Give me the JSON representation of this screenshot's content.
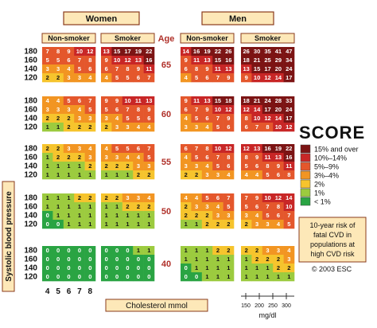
{
  "chart_data": {
    "type": "heatmap",
    "title": "SCORE",
    "sexes": [
      "Women",
      "Men"
    ],
    "smoking": [
      "Non-smoker",
      "Smoker"
    ],
    "age_header": "Age",
    "ages": [
      65,
      60,
      55,
      50,
      40
    ],
    "sbp_rows": [
      180,
      160,
      140,
      120
    ],
    "chol_cols": [
      4,
      5,
      6,
      7,
      8
    ],
    "xlabel": "Cholesterol mmol",
    "ylabel": "Systolic blood pressure",
    "mgdl_ticks": [
      "150",
      "200",
      "250",
      "300"
    ],
    "mgdl_unit": "mg/dl",
    "risk": {
      "Women": {
        "Non-smoker": [
          [
            [
              7,
              8,
              9,
              10,
              12
            ],
            [
              5,
              5,
              6,
              7,
              8
            ],
            [
              3,
              3,
              4,
              5,
              6
            ],
            [
              2,
              2,
              3,
              3,
              4
            ]
          ],
          [
            [
              4,
              4,
              5,
              6,
              7
            ],
            [
              3,
              3,
              3,
              4,
              5
            ],
            [
              2,
              2,
              2,
              3,
              3
            ],
            [
              1,
              1,
              2,
              2,
              2
            ]
          ],
          [
            [
              2,
              2,
              3,
              3,
              4
            ],
            [
              1,
              2,
              2,
              2,
              3
            ],
            [
              1,
              1,
              1,
              1,
              2
            ],
            [
              1,
              1,
              1,
              1,
              1
            ]
          ],
          [
            [
              1,
              1,
              1,
              2,
              2
            ],
            [
              1,
              1,
              1,
              1,
              1
            ],
            [
              0,
              1,
              1,
              1,
              1
            ],
            [
              0,
              0,
              1,
              1,
              1
            ]
          ],
          [
            [
              0,
              0,
              0,
              0,
              0
            ],
            [
              0,
              0,
              0,
              0,
              0
            ],
            [
              0,
              0,
              0,
              0,
              0
            ],
            [
              0,
              0,
              0,
              0,
              0
            ]
          ]
        ],
        "Smoker": [
          [
            [
              13,
              15,
              17,
              19,
              22
            ],
            [
              9,
              10,
              12,
              13,
              16
            ],
            [
              6,
              7,
              8,
              9,
              11
            ],
            [
              4,
              5,
              5,
              6,
              7
            ]
          ],
          [
            [
              9,
              9,
              10,
              11,
              13
            ],
            [
              5,
              6,
              7,
              8,
              9
            ],
            [
              3,
              4,
              5,
              5,
              6
            ],
            [
              2,
              3,
              3,
              4,
              4
            ]
          ],
          [
            [
              4,
              5,
              5,
              6,
              7
            ],
            [
              3,
              3,
              4,
              4,
              5
            ],
            [
              2,
              2,
              2,
              3,
              3
            ],
            [
              1,
              1,
              1,
              2,
              2
            ]
          ],
          [
            [
              2,
              2,
              3,
              3,
              4
            ],
            [
              1,
              1,
              2,
              2,
              2
            ],
            [
              1,
              1,
              1,
              1,
              1
            ],
            [
              1,
              1,
              1,
              1,
              1
            ]
          ],
          [
            [
              0,
              0,
              0,
              1,
              1
            ],
            [
              0,
              0,
              0,
              0,
              0
            ],
            [
              0,
              0,
              0,
              0,
              0
            ],
            [
              0,
              0,
              0,
              0,
              0
            ]
          ]
        ]
      },
      "Men": {
        "Non-smoker": [
          [
            [
              14,
              16,
              19,
              22,
              26
            ],
            [
              9,
              11,
              13,
              15,
              16
            ],
            [
              6,
              8,
              9,
              11,
              13
            ],
            [
              4,
              5,
              6,
              7,
              9
            ]
          ],
          [
            [
              9,
              11,
              13,
              15,
              18
            ],
            [
              6,
              7,
              9,
              10,
              12
            ],
            [
              4,
              5,
              6,
              7,
              9
            ],
            [
              3,
              3,
              4,
              5,
              6
            ]
          ],
          [
            [
              6,
              7,
              8,
              10,
              12
            ],
            [
              4,
              5,
              6,
              7,
              8
            ],
            [
              3,
              3,
              4,
              5,
              6
            ],
            [
              2,
              2,
              3,
              3,
              4
            ]
          ],
          [
            [
              4,
              4,
              5,
              6,
              7
            ],
            [
              2,
              3,
              3,
              4,
              5
            ],
            [
              2,
              2,
              2,
              3,
              3
            ],
            [
              1,
              1,
              2,
              2,
              2
            ]
          ],
          [
            [
              1,
              1,
              1,
              2,
              2
            ],
            [
              1,
              1,
              1,
              1,
              1
            ],
            [
              0,
              1,
              1,
              1,
              1
            ],
            [
              0,
              0,
              1,
              1,
              1
            ]
          ]
        ],
        "Smoker": [
          [
            [
              26,
              30,
              35,
              41,
              47
            ],
            [
              18,
              21,
              25,
              29,
              34
            ],
            [
              13,
              15,
              17,
              20,
              24
            ],
            [
              9,
              10,
              12,
              14,
              17
            ]
          ],
          [
            [
              18,
              21,
              24,
              28,
              33
            ],
            [
              12,
              14,
              17,
              20,
              24
            ],
            [
              8,
              10,
              12,
              14,
              17
            ],
            [
              6,
              7,
              8,
              10,
              12
            ]
          ],
          [
            [
              12,
              13,
              16,
              19,
              22
            ],
            [
              8,
              9,
              11,
              13,
              16
            ],
            [
              5,
              6,
              8,
              9,
              11
            ],
            [
              4,
              4,
              5,
              6,
              8
            ]
          ],
          [
            [
              7,
              9,
              10,
              12,
              14
            ],
            [
              5,
              6,
              7,
              8,
              10
            ],
            [
              3,
              4,
              5,
              6,
              7
            ],
            [
              2,
              3,
              3,
              4,
              5
            ]
          ],
          [
            [
              2,
              2,
              3,
              3,
              4
            ],
            [
              1,
              2,
              2,
              2,
              3
            ],
            [
              1,
              1,
              1,
              2,
              2
            ],
            [
              1,
              1,
              1,
              1,
              1
            ]
          ]
        ]
      }
    },
    "legend": {
      "items": [
        {
          "label": "15% and over",
          "color": "#7c1414"
        },
        {
          "label": "10%–14%",
          "color": "#c82626"
        },
        {
          "label": "5%–9%",
          "color": "#e4572c"
        },
        {
          "label": "3%–4%",
          "color": "#f29522"
        },
        {
          "label": "2%",
          "color": "#f6c42d"
        },
        {
          "label": "1%",
          "color": "#9ccb3f"
        },
        {
          "label": "< 1%",
          "color": "#2aa443"
        }
      ]
    },
    "note_lines": [
      "10-year risk of",
      "fatal CVD in",
      "populations at",
      "high CVD risk"
    ],
    "copyright": "© 2003 ESC"
  }
}
